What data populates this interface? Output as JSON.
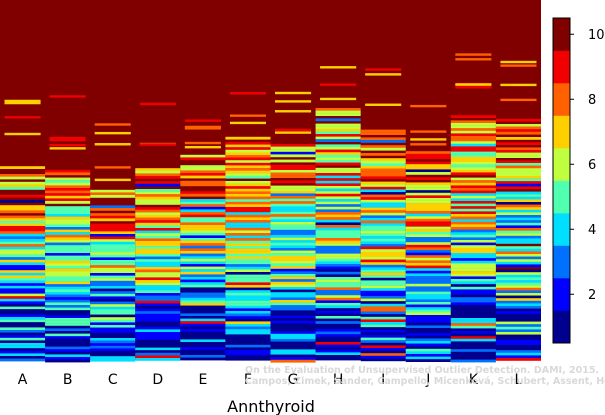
{
  "chart_data": {
    "type": "heatmap",
    "title": "",
    "xlabel": "Annthyroid",
    "ylabel": "",
    "categories": [
      "A",
      "B",
      "C",
      "D",
      "E",
      "F",
      "G",
      "H",
      "I",
      "J",
      "K",
      "L"
    ],
    "colorbar": {
      "vmin": 0.5,
      "vmax": 10.5,
      "ticks": [
        2,
        4,
        6,
        8,
        10
      ],
      "colormap": "jet (10 discrete levels)",
      "level_colors": [
        "#00008f",
        "#0000ff",
        "#0070ff",
        "#00dfff",
        "#50ffaf",
        "#bfff40",
        "#ffd000",
        "#ff6000",
        "#f00000",
        "#800000"
      ]
    },
    "column_top_fraction_below_max": [
      0.56,
      0.55,
      0.48,
      0.54,
      0.57,
      0.62,
      0.6,
      0.7,
      0.64,
      0.58,
      0.68,
      0.67
    ],
    "watermark": [
      "On the Evaluation of Unsupervised Outlier Detection. DAMI, 2015.",
      "Campos, Zimek, Sander, Campello, Micenková, Schubert, Assent, Houle"
    ]
  }
}
